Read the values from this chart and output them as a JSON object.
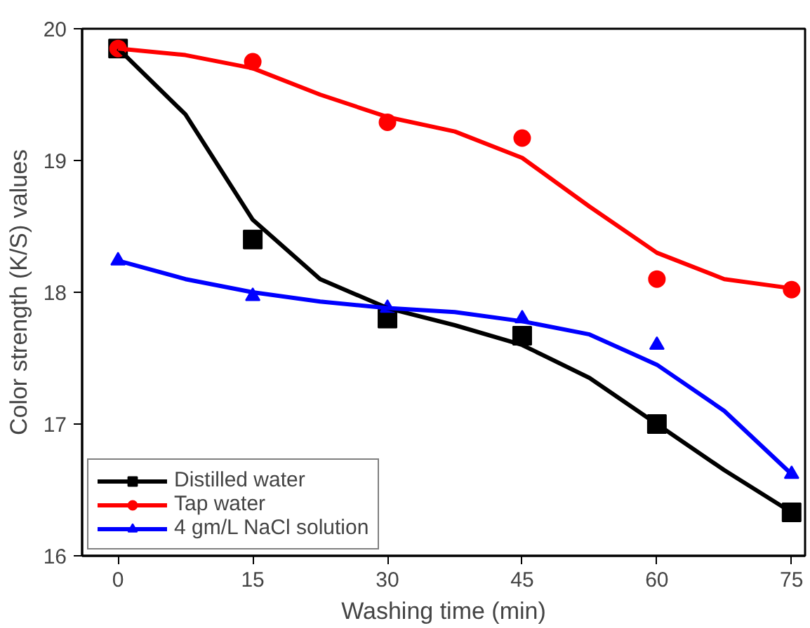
{
  "chart_data": {
    "type": "scatter",
    "xlabel": "Washing time (min)",
    "ylabel": "Color strength (K/S) values",
    "x": [
      0,
      15,
      30,
      45,
      60,
      75
    ],
    "xlim": [
      -4,
      76.5
    ],
    "xticks": [
      0,
      15,
      30,
      45,
      60,
      75
    ],
    "ylim": [
      16,
      20
    ],
    "yticks": [
      16,
      17,
      18,
      19,
      20
    ],
    "grid": false,
    "legend": "bottom left",
    "line_style": "solid",
    "series": [
      {
        "name": "Distilled water",
        "color": "#000000",
        "marker": "square",
        "values": [
          19.85,
          18.4,
          17.8,
          17.67,
          17.0,
          16.33
        ]
      },
      {
        "name": "Tap water",
        "color": "#ff0000",
        "marker": "circle",
        "values": [
          19.85,
          19.75,
          19.29,
          19.17,
          18.1,
          18.02
        ]
      },
      {
        "name": "4 gm/L NaCl solution",
        "color": "#0000ff",
        "marker": "triangle",
        "values": [
          18.24,
          17.97,
          17.88,
          17.8,
          17.6,
          16.62
        ]
      },
      {
        "type": "line",
        "color": "#000000",
        "x": [
          0,
          7.5,
          15,
          22.5,
          30,
          37.5,
          45,
          52.5,
          60,
          67.5,
          75
        ],
        "values": [
          19.85,
          19.35,
          18.55,
          18.1,
          17.88,
          17.75,
          17.6,
          17.35,
          17.0,
          16.65,
          16.33
        ]
      },
      {
        "type": "line",
        "color": "#ff0000",
        "x": [
          0,
          7.5,
          15,
          22.5,
          30,
          37.5,
          45,
          52.5,
          60,
          67.5,
          75
        ],
        "values": [
          19.85,
          19.8,
          19.7,
          19.5,
          19.33,
          19.22,
          19.02,
          18.65,
          18.3,
          18.1,
          18.03
        ]
      },
      {
        "type": "line",
        "color": "#0000ff",
        "x": [
          0,
          7.5,
          15,
          22.5,
          30,
          37.5,
          45,
          52.5,
          60,
          67.5,
          75
        ],
        "values": [
          18.24,
          18.1,
          18.0,
          17.93,
          17.88,
          17.85,
          17.78,
          17.68,
          17.45,
          17.1,
          16.62
        ]
      }
    ]
  }
}
